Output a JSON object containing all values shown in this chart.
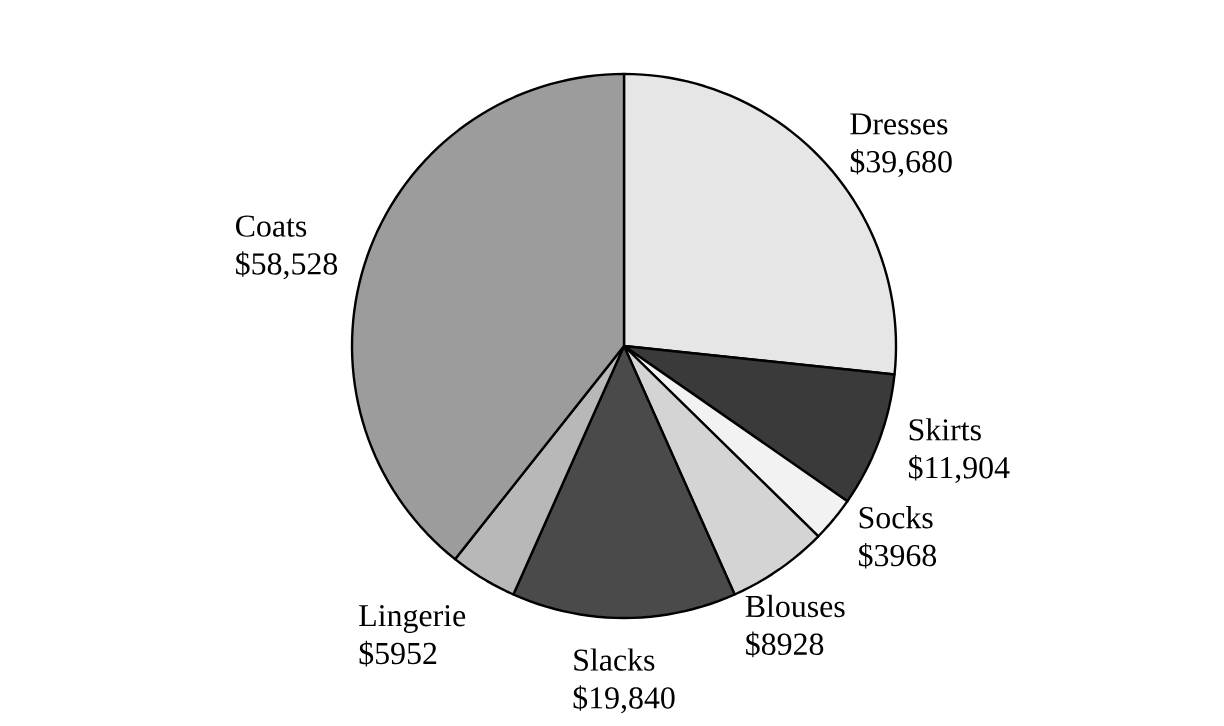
{
  "chart_data": {
    "type": "pie",
    "categories": [
      "Dresses",
      "Skirts",
      "Socks",
      "Blouses",
      "Slacks",
      "Lingerie",
      "Coats"
    ],
    "values": [
      39680,
      11904,
      3968,
      8928,
      19840,
      5952,
      58528
    ],
    "value_labels": [
      "$39,680",
      "$11,904",
      "$3968",
      "$8928",
      "$19,840",
      "$5952",
      "$58,528"
    ],
    "colors": [
      "#e6e6e6",
      "#3a3a3a",
      "#f2f2f2",
      "#d4d4d4",
      "#4a4a4a",
      "#b8b8b8",
      "#9c9c9c"
    ]
  }
}
